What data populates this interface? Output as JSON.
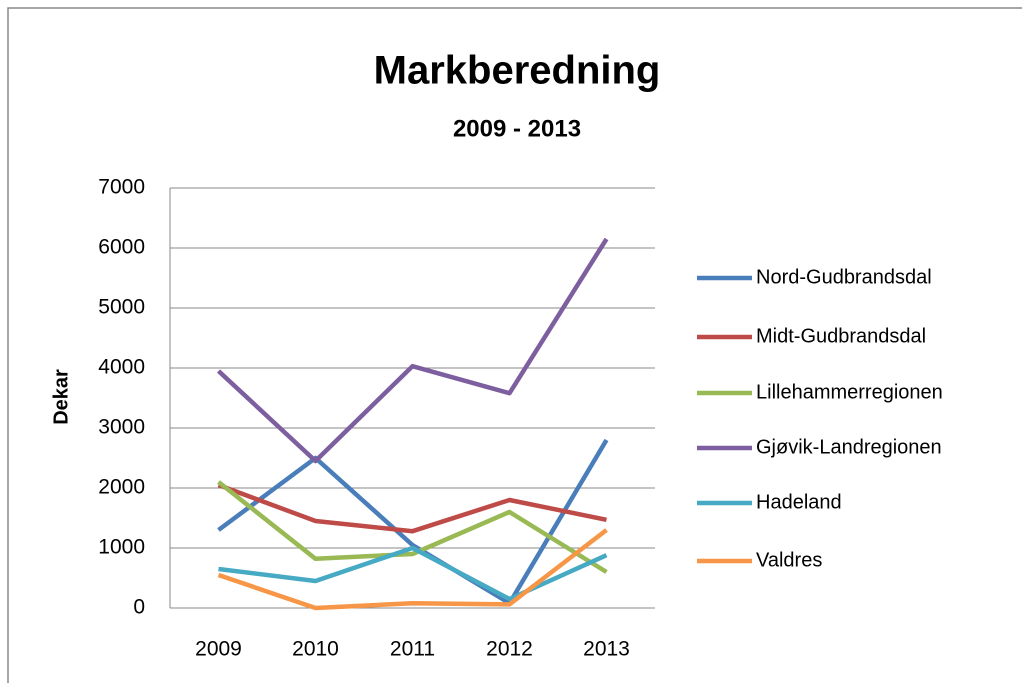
{
  "chart_data": {
    "type": "line",
    "title": "Markberedning",
    "subtitle": "2009 - 2013",
    "y_label": "Dekar",
    "categories": [
      "2009",
      "2010",
      "2011",
      "2012",
      "2013"
    ],
    "series": [
      {
        "name": "Nord-Gudbrandsdal",
        "color": "#4a7ebb",
        "values": [
          1300,
          2500,
          1050,
          80,
          2800
        ]
      },
      {
        "name": "Midt-Gudbrandsdal",
        "color": "#be4b48",
        "values": [
          2050,
          1450,
          1280,
          1800,
          1470
        ]
      },
      {
        "name": "Lillehammerregionen",
        "color": "#98b954",
        "values": [
          2100,
          820,
          900,
          1600,
          600
        ]
      },
      {
        "name": "Gjøvik-Landregionen",
        "color": "#7d5fa0",
        "values": [
          3950,
          2450,
          4030,
          3580,
          6150
        ]
      },
      {
        "name": "Hadeland",
        "color": "#46aac5",
        "values": [
          650,
          450,
          1000,
          150,
          880
        ]
      },
      {
        "name": "Valdres",
        "color": "#f79646",
        "values": [
          550,
          0,
          80,
          60,
          1300
        ]
      }
    ],
    "ylim": [
      0,
      7000
    ],
    "yticks": [
      0,
      1000,
      2000,
      3000,
      4000,
      5000,
      6000,
      7000
    ],
    "grid": true,
    "legend": "right"
  }
}
